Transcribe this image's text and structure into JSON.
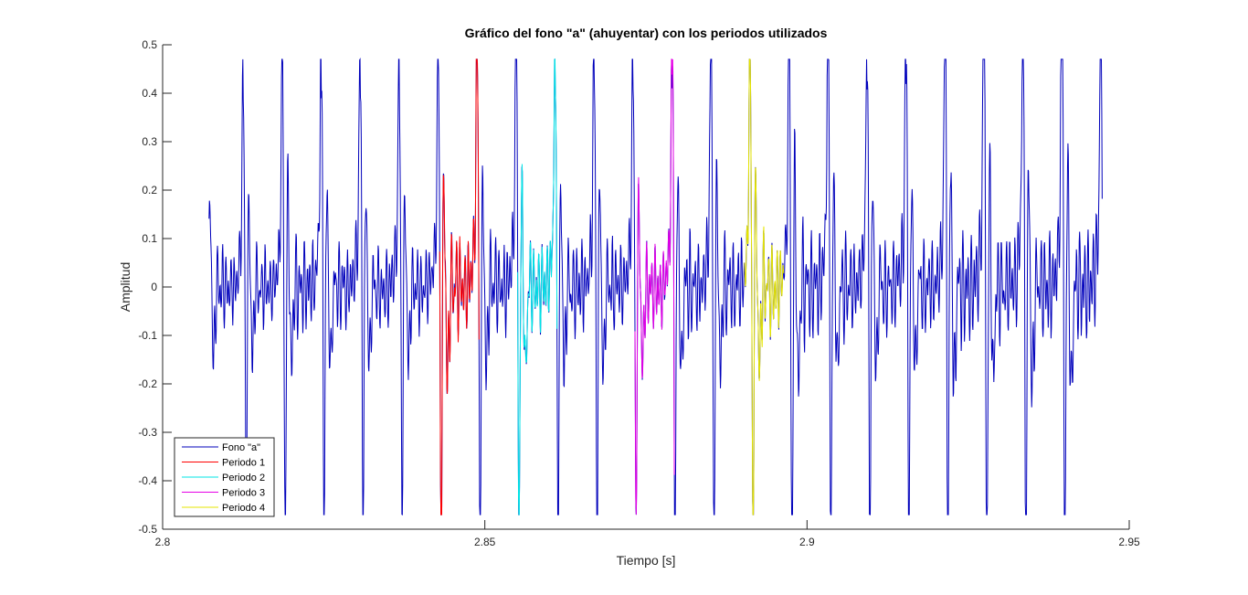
{
  "chart_data": {
    "type": "line",
    "title": "Gráfico del fono \"a\" (ahuyentar) con los periodos utilizados",
    "xlabel": "Tiempo [s]",
    "ylabel": "Amplitud",
    "xlim": [
      2.8,
      2.95
    ],
    "ylim": [
      -0.5,
      0.5
    ],
    "xticks": [
      2.8,
      2.85,
      2.9,
      2.95
    ],
    "xtick_labels": [
      "2.8",
      "2.85",
      "2.9",
      "2.95"
    ],
    "yticks": [
      -0.5,
      -0.4,
      -0.3,
      -0.2,
      -0.1,
      0,
      0.1,
      0.2,
      0.3,
      0.4,
      0.5
    ],
    "ytick_labels": [
      "-0.5",
      "-0.4",
      "-0.3",
      "-0.2",
      "-0.1",
      "0",
      "0.1",
      "0.2",
      "0.3",
      "0.4",
      "0.5"
    ],
    "grid": false,
    "legend_position": "bottom-left",
    "signal": {
      "t_start": 2.8072,
      "t_end": 2.9458,
      "pitch_period": 0.00605,
      "first_peak": 2.8125
    },
    "series": [
      {
        "name": "Fono \"a\"",
        "color": "#0000bb",
        "t_start": 2.8072,
        "t_end": 2.9458
      },
      {
        "name": "Periodo 1",
        "color": "#ff0000",
        "t_start": 2.843,
        "t_end": 2.8491
      },
      {
        "name": "Periodo 2",
        "color": "#00e6e6",
        "t_start": 2.8551,
        "t_end": 2.8612
      },
      {
        "name": "Periodo 3",
        "color": "#e600e6",
        "t_start": 2.8733,
        "t_end": 2.8794
      },
      {
        "name": "Periodo 4",
        "color": "#e6e600",
        "t_start": 2.8903,
        "t_end": 2.8964
      }
    ]
  }
}
